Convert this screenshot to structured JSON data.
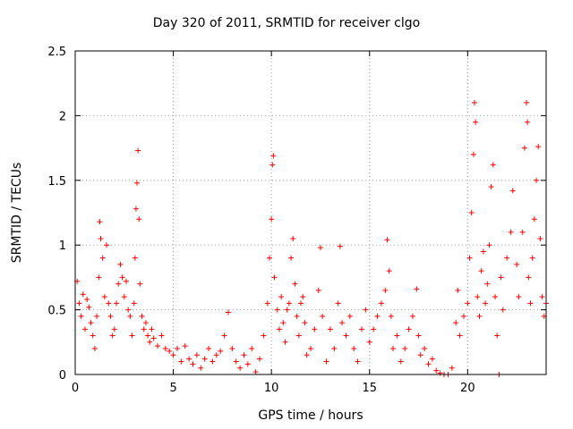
{
  "chart_data": {
    "type": "scatter",
    "title": "Day 320 of 2011, SRMTID for receiver clgo",
    "xlabel": "GPS time / hours",
    "ylabel": "SRMTID / TECUs",
    "xlim": [
      0,
      24
    ],
    "ylim": [
      0,
      2.5
    ],
    "xticks": [
      0,
      5,
      10,
      15,
      20
    ],
    "yticks": [
      0,
      0.5,
      1,
      1.5,
      2,
      2.5
    ],
    "ytick_labels": [
      "0",
      "0.5",
      "1",
      "1.5",
      "2",
      "2.5"
    ],
    "grid": true,
    "marker": "+",
    "color": "#ff0000",
    "series": [
      {
        "name": "SRMTID",
        "points": [
          [
            0.1,
            0.72
          ],
          [
            0.2,
            0.55
          ],
          [
            0.3,
            0.45
          ],
          [
            0.4,
            0.62
          ],
          [
            0.5,
            0.35
          ],
          [
            0.6,
            0.58
          ],
          [
            0.7,
            0.52
          ],
          [
            0.8,
            0.4
          ],
          [
            0.9,
            0.3
          ],
          [
            1.0,
            0.2
          ],
          [
            1.1,
            0.45
          ],
          [
            1.2,
            0.75
          ],
          [
            1.25,
            1.18
          ],
          [
            1.3,
            1.05
          ],
          [
            1.4,
            0.9
          ],
          [
            1.5,
            0.6
          ],
          [
            1.6,
            1.0
          ],
          [
            1.7,
            0.55
          ],
          [
            1.8,
            0.45
          ],
          [
            1.9,
            0.3
          ],
          [
            2.0,
            0.35
          ],
          [
            2.1,
            0.55
          ],
          [
            2.2,
            0.7
          ],
          [
            2.3,
            0.85
          ],
          [
            2.4,
            0.75
          ],
          [
            2.5,
            0.6
          ],
          [
            2.6,
            0.72
          ],
          [
            2.7,
            0.5
          ],
          [
            2.8,
            0.45
          ],
          [
            2.9,
            0.3
          ],
          [
            3.0,
            0.55
          ],
          [
            3.05,
            0.9
          ],
          [
            3.1,
            1.28
          ],
          [
            3.15,
            1.48
          ],
          [
            3.2,
            1.73
          ],
          [
            3.25,
            1.2
          ],
          [
            3.3,
            0.7
          ],
          [
            3.4,
            0.45
          ],
          [
            3.5,
            0.35
          ],
          [
            3.6,
            0.4
          ],
          [
            3.7,
            0.3
          ],
          [
            3.8,
            0.25
          ],
          [
            3.9,
            0.35
          ],
          [
            4.0,
            0.28
          ],
          [
            4.2,
            0.22
          ],
          [
            4.4,
            0.3
          ],
          [
            4.6,
            0.2
          ],
          [
            4.8,
            0.18
          ],
          [
            5.0,
            0.15
          ],
          [
            5.2,
            0.2
          ],
          [
            5.4,
            0.1
          ],
          [
            5.6,
            0.22
          ],
          [
            5.8,
            0.12
          ],
          [
            6.0,
            0.08
          ],
          [
            6.2,
            0.15
          ],
          [
            6.4,
            0.05
          ],
          [
            6.6,
            0.12
          ],
          [
            6.8,
            0.2
          ],
          [
            7.0,
            0.1
          ],
          [
            7.2,
            0.15
          ],
          [
            7.4,
            0.18
          ],
          [
            7.6,
            0.3
          ],
          [
            7.8,
            0.48
          ],
          [
            8.0,
            0.2
          ],
          [
            8.2,
            0.1
          ],
          [
            8.4,
            0.05
          ],
          [
            8.6,
            0.15
          ],
          [
            8.8,
            0.08
          ],
          [
            9.0,
            0.2
          ],
          [
            9.2,
            0.02
          ],
          [
            9.4,
            0.12
          ],
          [
            9.6,
            0.3
          ],
          [
            9.8,
            0.55
          ],
          [
            9.9,
            0.9
          ],
          [
            10.0,
            1.2
          ],
          [
            10.05,
            1.62
          ],
          [
            10.1,
            1.69
          ],
          [
            10.15,
            0.75
          ],
          [
            10.3,
            0.5
          ],
          [
            10.4,
            0.35
          ],
          [
            10.5,
            0.6
          ],
          [
            10.6,
            0.4
          ],
          [
            10.7,
            0.25
          ],
          [
            10.8,
            0.5
          ],
          [
            10.9,
            0.55
          ],
          [
            11.0,
            0.9
          ],
          [
            11.1,
            1.05
          ],
          [
            11.2,
            0.7
          ],
          [
            11.3,
            0.45
          ],
          [
            11.4,
            0.3
          ],
          [
            11.5,
            0.55
          ],
          [
            11.6,
            0.6
          ],
          [
            11.7,
            0.4
          ],
          [
            11.8,
            0.15
          ],
          [
            12.0,
            0.2
          ],
          [
            12.2,
            0.35
          ],
          [
            12.4,
            0.65
          ],
          [
            12.5,
            0.98
          ],
          [
            12.6,
            0.45
          ],
          [
            12.8,
            0.1
          ],
          [
            13.0,
            0.35
          ],
          [
            13.2,
            0.2
          ],
          [
            13.4,
            0.55
          ],
          [
            13.5,
            0.99
          ],
          [
            13.6,
            0.4
          ],
          [
            13.8,
            0.3
          ],
          [
            14.0,
            0.45
          ],
          [
            14.2,
            0.2
          ],
          [
            14.4,
            0.1
          ],
          [
            14.6,
            0.35
          ],
          [
            14.8,
            0.5
          ],
          [
            15.0,
            0.25
          ],
          [
            15.2,
            0.35
          ],
          [
            15.4,
            0.45
          ],
          [
            15.6,
            0.55
          ],
          [
            15.8,
            0.65
          ],
          [
            15.9,
            1.04
          ],
          [
            16.0,
            0.8
          ],
          [
            16.1,
            0.45
          ],
          [
            16.2,
            0.2
          ],
          [
            16.4,
            0.3
          ],
          [
            16.6,
            0.1
          ],
          [
            16.8,
            0.2
          ],
          [
            17.0,
            0.35
          ],
          [
            17.2,
            0.45
          ],
          [
            17.4,
            0.66
          ],
          [
            17.5,
            0.3
          ],
          [
            17.6,
            0.15
          ],
          [
            17.8,
            0.2
          ],
          [
            18.0,
            0.08
          ],
          [
            18.2,
            0.12
          ],
          [
            18.4,
            0.03
          ],
          [
            18.6,
            0.01
          ],
          [
            18.8,
            0.0
          ],
          [
            19.0,
            0.0
          ],
          [
            19.2,
            0.05
          ],
          [
            19.4,
            0.4
          ],
          [
            19.5,
            0.65
          ],
          [
            19.6,
            0.3
          ],
          [
            19.8,
            0.45
          ],
          [
            20.0,
            0.55
          ],
          [
            20.1,
            0.9
          ],
          [
            20.2,
            1.25
          ],
          [
            20.3,
            1.7
          ],
          [
            20.35,
            2.1
          ],
          [
            20.4,
            1.95
          ],
          [
            20.5,
            0.6
          ],
          [
            20.6,
            0.45
          ],
          [
            20.7,
            0.8
          ],
          [
            20.8,
            0.95
          ],
          [
            20.9,
            0.55
          ],
          [
            21.0,
            0.7
          ],
          [
            21.1,
            1.0
          ],
          [
            21.2,
            1.45
          ],
          [
            21.3,
            1.62
          ],
          [
            21.4,
            0.6
          ],
          [
            21.5,
            0.3
          ],
          [
            21.6,
            0.0
          ],
          [
            21.7,
            0.75
          ],
          [
            21.8,
            0.5
          ],
          [
            22.0,
            0.9
          ],
          [
            22.2,
            1.1
          ],
          [
            22.3,
            1.42
          ],
          [
            22.5,
            0.85
          ],
          [
            22.6,
            0.6
          ],
          [
            22.8,
            1.1
          ],
          [
            22.9,
            1.75
          ],
          [
            23.0,
            2.1
          ],
          [
            23.05,
            1.95
          ],
          [
            23.1,
            0.75
          ],
          [
            23.2,
            0.55
          ],
          [
            23.3,
            0.9
          ],
          [
            23.4,
            1.2
          ],
          [
            23.5,
            1.5
          ],
          [
            23.6,
            1.76
          ],
          [
            23.7,
            1.05
          ],
          [
            23.8,
            0.6
          ],
          [
            23.9,
            0.45
          ],
          [
            24.0,
            0.55
          ]
        ]
      }
    ]
  }
}
